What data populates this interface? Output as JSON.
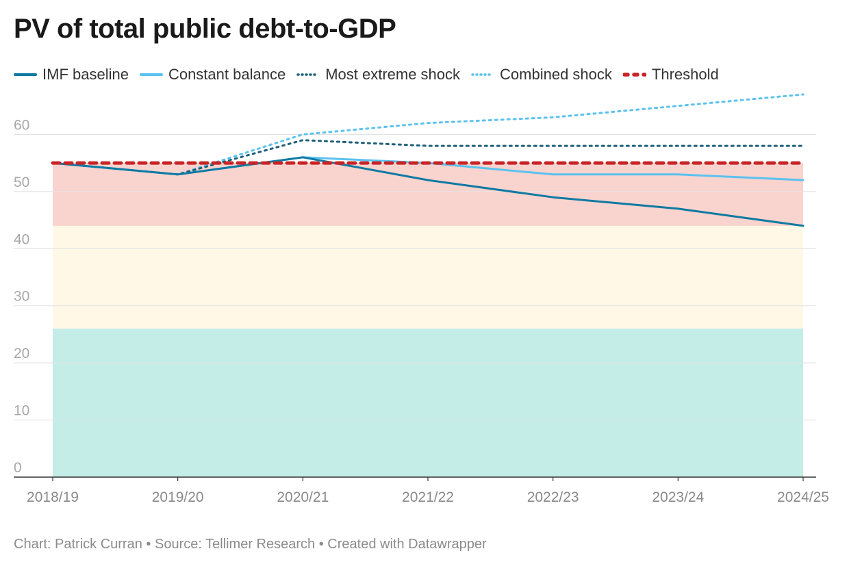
{
  "title": "PV of total public debt-to-GDP",
  "legend": [
    {
      "label": "IMF baseline",
      "color": "#0f7aa3",
      "style": "solid"
    },
    {
      "label": "Constant balance",
      "color": "#5bc2f0",
      "style": "solid"
    },
    {
      "label": "Most extreme shock",
      "color": "#1d5f7a",
      "style": "dotted"
    },
    {
      "label": "Combined shock",
      "color": "#5bc2f0",
      "style": "dotted"
    },
    {
      "label": "Threshold",
      "color": "#c72426",
      "style": "dashed"
    }
  ],
  "footer": {
    "chart_credit": "Chart: Patrick Curran",
    "source": "Source: Tellimer Research",
    "created": "Created with Datawrapper",
    "separator": "•"
  },
  "chart_data": {
    "type": "line",
    "title": "PV of total public debt-to-GDP",
    "x": [
      "2018/19",
      "2019/20",
      "2020/21",
      "2021/22",
      "2022/23",
      "2023/24",
      "2024/25"
    ],
    "ylim": [
      0,
      67
    ],
    "yticks": [
      0,
      10,
      20,
      30,
      40,
      50,
      60
    ],
    "grid": true,
    "legend_position": "top",
    "bands": [
      {
        "from": 0,
        "to": 26,
        "color": "#c3ede6"
      },
      {
        "from": 26,
        "to": 44,
        "color": "#fff8e6"
      },
      {
        "from": 44,
        "to": 55,
        "color": "#f9d3cd"
      }
    ],
    "series": [
      {
        "name": "IMF baseline",
        "values": [
          55,
          53,
          56,
          52,
          49,
          47,
          44
        ],
        "color": "#0f7aa3",
        "style": "solid"
      },
      {
        "name": "Constant balance",
        "values": [
          55,
          53,
          56,
          55,
          53,
          53,
          52
        ],
        "color": "#5bc2f0",
        "style": "solid"
      },
      {
        "name": "Most extreme shock",
        "values": [
          55,
          53,
          59,
          58,
          58,
          58,
          58
        ],
        "color": "#1d5f7a",
        "style": "dotted"
      },
      {
        "name": "Combined shock",
        "values": [
          55,
          53,
          60,
          62,
          63,
          65,
          67
        ],
        "color": "#5bc2f0",
        "style": "dotted"
      },
      {
        "name": "Threshold",
        "values": [
          55,
          55,
          55,
          55,
          55,
          55,
          55
        ],
        "color": "#c72426",
        "style": "dashed"
      }
    ]
  }
}
